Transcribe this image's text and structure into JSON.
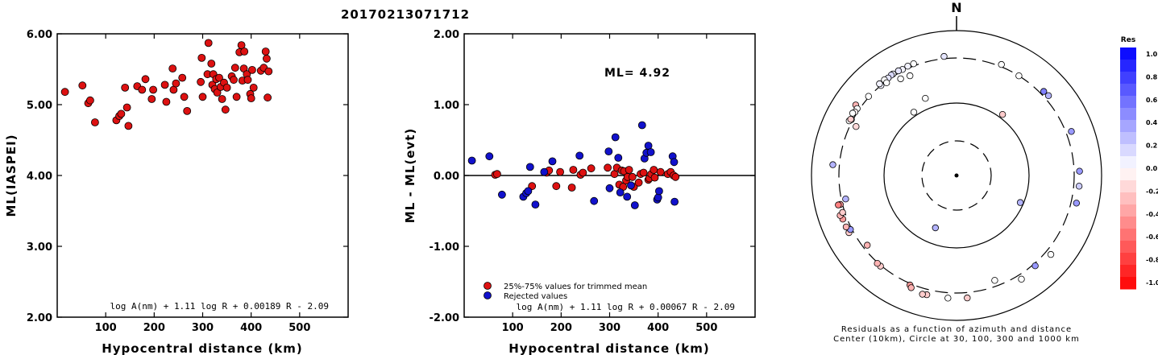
{
  "title": "20170213071712",
  "colors": {
    "red": "#dd1111",
    "blue": "#1111cc"
  },
  "chart_data": [
    {
      "type": "scatter",
      "ylabel": "ML(IASPEI)",
      "xlabel": "Hypocentral distance (km)",
      "xlim": [
        0,
        600
      ],
      "ylim": [
        2,
        6
      ],
      "xticks": [
        100,
        200,
        300,
        400,
        500
      ],
      "yticks": [
        2,
        3,
        4,
        5,
        6
      ],
      "ytick_labels": [
        "2.00",
        "3.00",
        "4.00",
        "5.00",
        "6.00"
      ],
      "formula": "log A(nm) + 1.11 log R + 0.00189 R - 2.09",
      "points": [
        [
          16,
          5.18
        ],
        [
          52,
          5.27
        ],
        [
          64,
          5.02
        ],
        [
          68,
          5.06
        ],
        [
          78,
          4.75
        ],
        [
          122,
          4.78
        ],
        [
          128,
          4.84
        ],
        [
          132,
          4.87
        ],
        [
          140,
          5.24
        ],
        [
          144,
          4.96
        ],
        [
          147,
          4.7
        ],
        [
          165,
          5.26
        ],
        [
          175,
          5.21
        ],
        [
          182,
          5.36
        ],
        [
          195,
          5.08
        ],
        [
          198,
          5.21
        ],
        [
          222,
          5.28
        ],
        [
          225,
          5.04
        ],
        [
          238,
          5.51
        ],
        [
          240,
          5.21
        ],
        [
          245,
          5.3
        ],
        [
          258,
          5.38
        ],
        [
          262,
          5.11
        ],
        [
          268,
          4.91
        ],
        [
          296,
          5.32
        ],
        [
          298,
          5.66
        ],
        [
          300,
          5.11
        ],
        [
          310,
          5.43
        ],
        [
          312,
          5.87
        ],
        [
          318,
          5.58
        ],
        [
          320,
          5.28
        ],
        [
          322,
          5.43
        ],
        [
          325,
          5.22
        ],
        [
          328,
          5.36
        ],
        [
          330,
          5.17
        ],
        [
          334,
          5.38
        ],
        [
          337,
          5.25
        ],
        [
          340,
          5.08
        ],
        [
          344,
          5.31
        ],
        [
          347,
          4.93
        ],
        [
          350,
          5.24
        ],
        [
          360,
          5.4
        ],
        [
          364,
          5.35
        ],
        [
          367,
          5.52
        ],
        [
          370,
          5.11
        ],
        [
          376,
          5.74
        ],
        [
          380,
          5.84
        ],
        [
          382,
          5.34
        ],
        [
          385,
          5.51
        ],
        [
          386,
          5.75
        ],
        [
          391,
          5.43
        ],
        [
          393,
          5.35
        ],
        [
          398,
          5.15
        ],
        [
          400,
          5.09
        ],
        [
          402,
          5.49
        ],
        [
          405,
          5.24
        ],
        [
          420,
          5.48
        ],
        [
          426,
          5.52
        ],
        [
          430,
          5.75
        ],
        [
          432,
          5.65
        ],
        [
          434,
          5.1
        ],
        [
          436,
          5.47
        ]
      ]
    },
    {
      "type": "scatter",
      "ylabel": "ML - ML(evt)",
      "xlabel": "Hypocentral distance (km)",
      "xlim": [
        0,
        600
      ],
      "ylim": [
        -2,
        2
      ],
      "xticks": [
        100,
        200,
        300,
        400,
        500
      ],
      "yticks": [
        -2,
        -1,
        0,
        1,
        2
      ],
      "ytick_labels": [
        "-2.00",
        "-1.00",
        "0.00",
        "1.00",
        "2.00"
      ],
      "annotation": "ML=  4.92",
      "formula": "log A(nm) + 1.11 log R + 0.00067 R - 2.09",
      "legend_position": "bottom-left",
      "series": [
        {
          "name": "25%-75% values for trimmed mean",
          "color": "red",
          "points": [
            [
              64,
              0.01
            ],
            [
              68,
              0.02
            ],
            [
              140,
              -0.15
            ],
            [
              170,
              0.04
            ],
            [
              175,
              0.07
            ],
            [
              190,
              -0.15
            ],
            [
              198,
              0.05
            ],
            [
              222,
              -0.17
            ],
            [
              225,
              0.08
            ],
            [
              240,
              0.01
            ],
            [
              245,
              0.04
            ],
            [
              262,
              0.1
            ],
            [
              296,
              0.11
            ],
            [
              310,
              0.02
            ],
            [
              315,
              0.11
            ],
            [
              320,
              -0.13
            ],
            [
              325,
              0.07
            ],
            [
              328,
              -0.16
            ],
            [
              330,
              0.06
            ],
            [
              334,
              -0.07
            ],
            [
              337,
              -0.02
            ],
            [
              340,
              0.08
            ],
            [
              347,
              -0.02
            ],
            [
              350,
              -0.16
            ],
            [
              360,
              -0.1
            ],
            [
              364,
              0.02
            ],
            [
              370,
              0.04
            ],
            [
              380,
              -0.06
            ],
            [
              382,
              -0.04
            ],
            [
              386,
              0.02
            ],
            [
              391,
              0.08
            ],
            [
              393,
              -0.03
            ],
            [
              405,
              0.05
            ],
            [
              420,
              0.02
            ],
            [
              426,
              0.05
            ],
            [
              432,
              0.0
            ],
            [
              436,
              -0.02
            ]
          ]
        },
        {
          "name": "Rejected values",
          "color": "blue",
          "points": [
            [
              16,
              0.21
            ],
            [
              52,
              0.27
            ],
            [
              78,
              -0.27
            ],
            [
              122,
              -0.3
            ],
            [
              128,
              -0.25
            ],
            [
              132,
              -0.22
            ],
            [
              136,
              0.12
            ],
            [
              147,
              -0.41
            ],
            [
              165,
              0.05
            ],
            [
              182,
              0.2
            ],
            [
              238,
              0.28
            ],
            [
              268,
              -0.36
            ],
            [
              298,
              0.34
            ],
            [
              300,
              -0.18
            ],
            [
              312,
              0.54
            ],
            [
              318,
              0.25
            ],
            [
              322,
              -0.24
            ],
            [
              336,
              -0.3
            ],
            [
              344,
              -0.14
            ],
            [
              352,
              -0.42
            ],
            [
              367,
              0.71
            ],
            [
              372,
              0.24
            ],
            [
              376,
              0.32
            ],
            [
              380,
              0.42
            ],
            [
              385,
              0.33
            ],
            [
              398,
              -0.34
            ],
            [
              400,
              -0.31
            ],
            [
              402,
              -0.22
            ],
            [
              430,
              0.27
            ],
            [
              433,
              0.19
            ],
            [
              434,
              -0.37
            ]
          ]
        }
      ]
    },
    {
      "type": "polar-scatter",
      "compass_label": "N",
      "caption_line1": "Residuals as a function of azimuth and distance",
      "caption_line2": "Center (10km), Circle at 30, 100, 300 and 1000 km",
      "rings_km": [
        30,
        100,
        300,
        1000
      ],
      "colorbar": {
        "title": "Res",
        "labels": [
          "1.0",
          "0.8",
          "0.6",
          "0.4",
          "0.2",
          "0.0",
          "-0.2",
          "-0.4",
          "-0.6",
          "-0.8",
          "-1.0"
        ]
      },
      "points": [
        {
          "az": 354,
          "dist": 330,
          "res": 0.1
        },
        {
          "az": 339,
          "dist": 330,
          "res": 0.0
        },
        {
          "az": 336,
          "dist": 330,
          "res": 0.05
        },
        {
          "az": 333,
          "dist": 320,
          "res": 0.05
        },
        {
          "az": 331,
          "dist": 330,
          "res": 0.1
        },
        {
          "az": 328,
          "dist": 330,
          "res": 0.05
        },
        {
          "az": 327,
          "dist": 330,
          "res": 0.15
        },
        {
          "az": 325,
          "dist": 320,
          "res": 0.1
        },
        {
          "az": 323,
          "dist": 330,
          "res": 0.0
        },
        {
          "az": 320,
          "dist": 300,
          "res": 0.05
        },
        {
          "az": 320,
          "dist": 330,
          "res": 0.05
        },
        {
          "az": 323,
          "dist": 290,
          "res": 0.0
        },
        {
          "az": 330,
          "dist": 260,
          "res": 0.0
        },
        {
          "az": 335,
          "dist": 250,
          "res": 0.0
        },
        {
          "az": 312,
          "dist": 310,
          "res": 0.0
        },
        {
          "az": 305,
          "dist": 380,
          "res": -0.3
        },
        {
          "az": 304,
          "dist": 330,
          "res": 0.0
        },
        {
          "az": 302,
          "dist": 330,
          "res": -0.05
        },
        {
          "az": 298,
          "dist": 320,
          "res": 0.05
        },
        {
          "az": 296,
          "dist": 260,
          "res": -0.15
        },
        {
          "az": 326,
          "dist": 110,
          "res": 0.0
        },
        {
          "az": 338,
          "dist": 130,
          "res": 0.0
        },
        {
          "az": 32,
          "dist": 300,
          "res": 0.0
        },
        {
          "az": 22,
          "dist": 330,
          "res": 0.0
        },
        {
          "az": 46,
          "dist": 350,
          "res": 0.5
        },
        {
          "az": 49,
          "dist": 360,
          "res": 0.3
        },
        {
          "az": 69,
          "dist": 380,
          "res": 0.4
        },
        {
          "az": 37,
          "dist": 110,
          "res": -0.2
        },
        {
          "az": 160,
          "dist": 260,
          "res": 0.0
        },
        {
          "az": 88,
          "dist": 380,
          "res": 0.4
        },
        {
          "az": 95,
          "dist": 380,
          "res": 0.2
        },
        {
          "az": 103,
          "dist": 380,
          "res": 0.4
        },
        {
          "az": 113,
          "dist": 90,
          "res": 0.3
        },
        {
          "az": 202,
          "dist": 60,
          "res": 0.3
        },
        {
          "az": 130,
          "dist": 380,
          "res": 0.0
        },
        {
          "az": 139,
          "dist": 330,
          "res": 0.4
        },
        {
          "az": 148,
          "dist": 370,
          "res": 0.0
        },
        {
          "az": 175,
          "dist": 380,
          "res": -0.2
        },
        {
          "az": 184,
          "dist": 380,
          "res": 0.0
        },
        {
          "az": 194,
          "dist": 380,
          "res": -0.2
        },
        {
          "az": 196,
          "dist": 390,
          "res": -0.2
        },
        {
          "az": 203,
          "dist": 320,
          "res": -0.4
        },
        {
          "az": 202,
          "dist": 350,
          "res": -0.3
        },
        {
          "az": 220,
          "dist": 310,
          "res": -0.2
        },
        {
          "az": 222,
          "dist": 310,
          "res": -0.3
        },
        {
          "az": 232,
          "dist": 270,
          "res": -0.3
        },
        {
          "az": 242,
          "dist": 360,
          "res": -0.2
        },
        {
          "az": 243,
          "dist": 320,
          "res": 0.4
        },
        {
          "az": 245,
          "dist": 360,
          "res": -0.3
        },
        {
          "az": 249,
          "dist": 360,
          "res": -0.4
        },
        {
          "az": 251,
          "dist": 380,
          "res": -0.3
        },
        {
          "az": 252,
          "dist": 330,
          "res": -0.2
        },
        {
          "az": 256,
          "dist": 330,
          "res": -0.4
        },
        {
          "az": 256,
          "dist": 360,
          "res": -0.5
        },
        {
          "az": 258,
          "dist": 270,
          "res": 0.3
        },
        {
          "az": 275,
          "dist": 400,
          "res": 0.3
        },
        {
          "az": 297,
          "dist": 340,
          "res": 0.0
        },
        {
          "az": 301,
          "dist": 350,
          "res": 0.0
        },
        {
          "az": 298,
          "dist": 330,
          "res": -0.2
        }
      ]
    }
  ]
}
